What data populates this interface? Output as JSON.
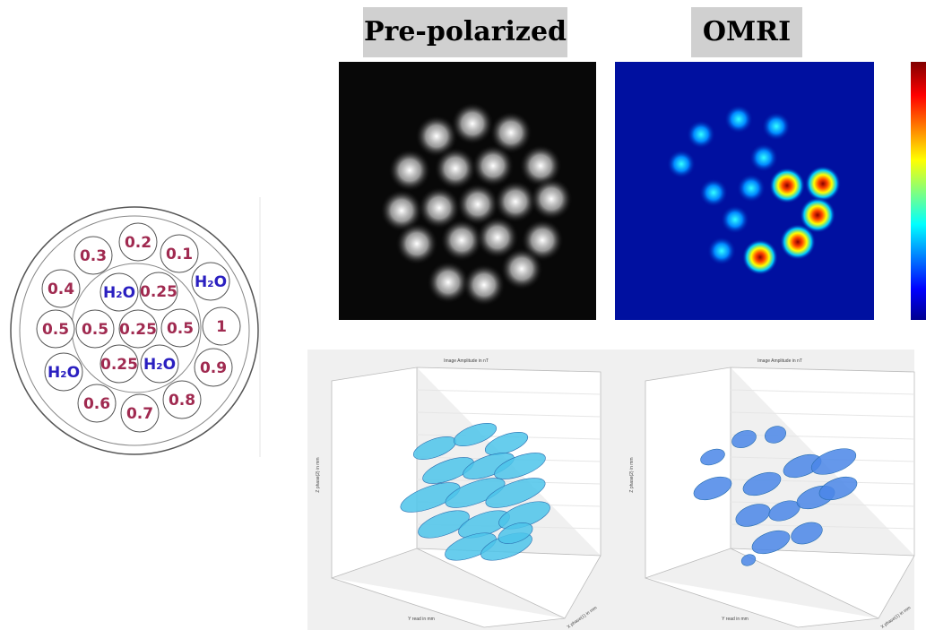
{
  "phantom": {
    "vials": [
      "0.3",
      "0.2",
      "0.1",
      "0.4",
      "H₂O",
      "0.25",
      "H₂O",
      "0.5",
      "0.5",
      "0.25",
      "0.5",
      "1",
      "H₂O",
      "0.25",
      "H₂O",
      "0.9",
      "0.6",
      "0.7",
      "0.8"
    ]
  },
  "panels": {
    "prepolarized": "Pre-polarized",
    "omri": "OMRI"
  },
  "plots3d": [
    {
      "title": "Image Amplitude in nT",
      "zlabel": "Z phase(2) in mm",
      "ylabel": "Y read in mm",
      "xlabel": "X phase(1) in mm"
    },
    {
      "title": "Image Amplitude in nT",
      "zlabel": "Z phase(2) in mm",
      "ylabel": "Y read in mm",
      "xlabel": "X phase(1) in mm"
    }
  ]
}
